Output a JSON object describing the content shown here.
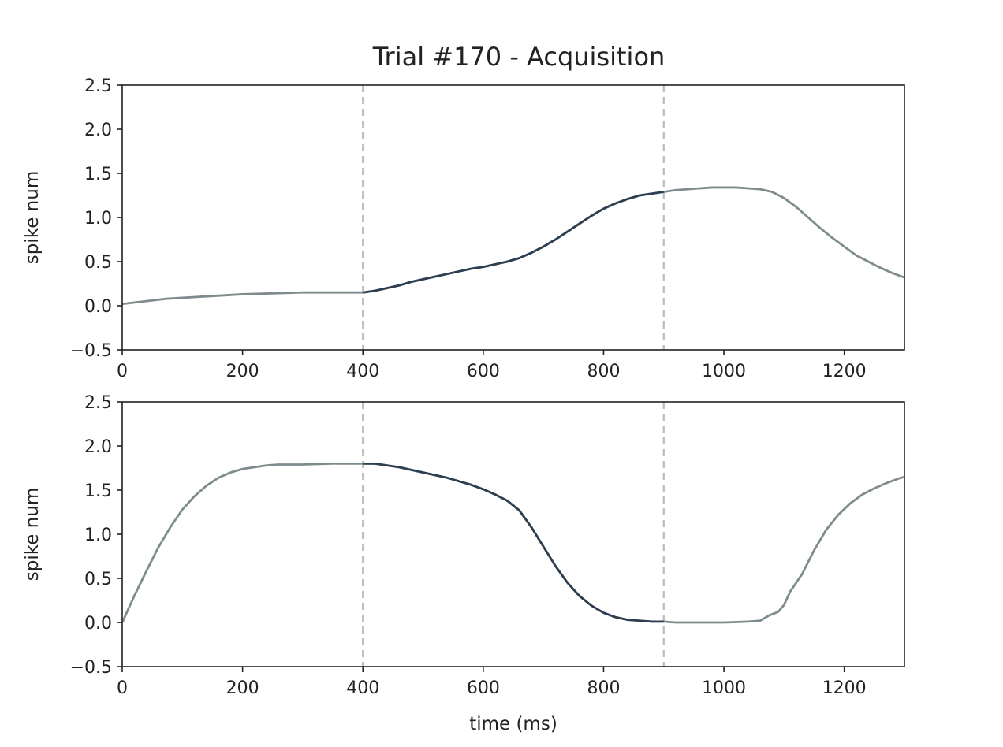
{
  "chart_data": {
    "type": "line",
    "title": "Trial #170 - Acquisition",
    "colors": {
      "inactive": "#7f8c8d",
      "active": "#2c3e50",
      "marker": "#bbbbbb",
      "axes": "#222222"
    },
    "markers_x": [
      400,
      900
    ],
    "active_window": [
      400,
      900
    ],
    "panels": [
      {
        "ylabel": "spike num",
        "xlabel": "",
        "xlim": [
          0,
          1300
        ],
        "ylim": [
          -0.5,
          2.5
        ],
        "xticks": [
          0,
          200,
          400,
          600,
          800,
          1000,
          1200
        ],
        "yticks": [
          -0.5,
          0.0,
          0.5,
          1.0,
          1.5,
          2.0,
          2.5
        ],
        "xtick_labels": [
          "0",
          "200",
          "400",
          "600",
          "800",
          "1000",
          "1200"
        ],
        "ytick_labels": [
          "−0.5",
          "0.0",
          "0.5",
          "1.0",
          "1.5",
          "2.0",
          "2.5"
        ],
        "series": [
          {
            "x": [
              0,
              25,
              50,
              75,
              100,
              150,
              200,
              250,
              300,
              350,
              400,
              420,
              440,
              460,
              480,
              500,
              520,
              540,
              560,
              580,
              600,
              620,
              640,
              660,
              680,
              700,
              720,
              740,
              760,
              780,
              800,
              820,
              840,
              860,
              880,
              900,
              920,
              940,
              960,
              980,
              1000,
              1020,
              1040,
              1060,
              1080,
              1100,
              1120,
              1140,
              1160,
              1180,
              1200,
              1220,
              1240,
              1260,
              1280,
              1300
            ],
            "y": [
              0.02,
              0.04,
              0.06,
              0.08,
              0.09,
              0.11,
              0.13,
              0.14,
              0.15,
              0.15,
              0.15,
              0.17,
              0.2,
              0.23,
              0.27,
              0.3,
              0.33,
              0.36,
              0.39,
              0.42,
              0.44,
              0.47,
              0.5,
              0.54,
              0.6,
              0.67,
              0.75,
              0.84,
              0.93,
              1.02,
              1.1,
              1.16,
              1.21,
              1.25,
              1.27,
              1.29,
              1.31,
              1.32,
              1.33,
              1.34,
              1.34,
              1.34,
              1.33,
              1.32,
              1.29,
              1.22,
              1.12,
              1.0,
              0.88,
              0.77,
              0.67,
              0.57,
              0.5,
              0.43,
              0.37,
              0.32
            ]
          }
        ]
      },
      {
        "ylabel": "spike num",
        "xlabel": "time (ms)",
        "xlim": [
          0,
          1300
        ],
        "ylim": [
          -0.5,
          2.5
        ],
        "xticks": [
          0,
          200,
          400,
          600,
          800,
          1000,
          1200
        ],
        "yticks": [
          -0.5,
          0.0,
          0.5,
          1.0,
          1.5,
          2.0,
          2.5
        ],
        "xtick_labels": [
          "0",
          "200",
          "400",
          "600",
          "800",
          "1000",
          "1200"
        ],
        "ytick_labels": [
          "−0.5",
          "0.0",
          "0.5",
          "1.0",
          "1.5",
          "2.0",
          "2.5"
        ],
        "series": [
          {
            "x": [
              0,
              20,
              40,
              60,
              80,
              100,
              120,
              140,
              160,
              180,
              200,
              220,
              240,
              260,
              300,
              350,
              400,
              420,
              440,
              460,
              480,
              500,
              520,
              540,
              560,
              580,
              600,
              620,
              640,
              660,
              680,
              700,
              720,
              740,
              760,
              780,
              800,
              820,
              840,
              860,
              880,
              900,
              920,
              950,
              1000,
              1040,
              1060,
              1075,
              1090,
              1100,
              1110,
              1130,
              1150,
              1170,
              1190,
              1210,
              1230,
              1250,
              1270,
              1290,
              1300
            ],
            "y": [
              0.0,
              0.3,
              0.58,
              0.85,
              1.08,
              1.28,
              1.43,
              1.55,
              1.64,
              1.7,
              1.74,
              1.76,
              1.78,
              1.79,
              1.79,
              1.8,
              1.8,
              1.8,
              1.78,
              1.76,
              1.73,
              1.7,
              1.67,
              1.64,
              1.6,
              1.56,
              1.51,
              1.45,
              1.38,
              1.27,
              1.08,
              0.86,
              0.64,
              0.45,
              0.3,
              0.19,
              0.11,
              0.06,
              0.03,
              0.02,
              0.01,
              0.01,
              0.0,
              0.0,
              0.0,
              0.01,
              0.02,
              0.08,
              0.12,
              0.2,
              0.35,
              0.55,
              0.82,
              1.05,
              1.22,
              1.35,
              1.45,
              1.52,
              1.58,
              1.63,
              1.65
            ]
          }
        ]
      }
    ]
  }
}
